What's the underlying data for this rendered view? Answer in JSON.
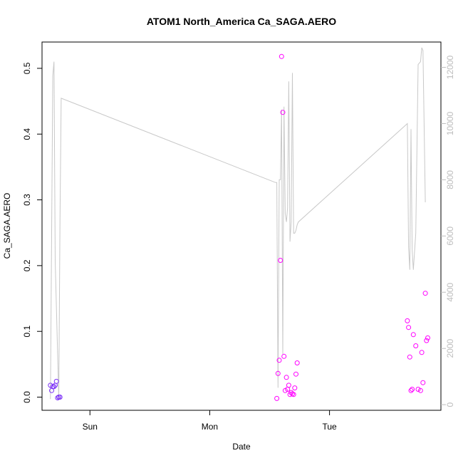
{
  "chart_data": {
    "type": "scatter",
    "title": "ATOM1 North_America Ca_SAGA.AERO",
    "xlabel": "Date",
    "ylabel": "Ca_SAGA.AERO",
    "xlim": [
      -0.4,
      2.93
    ],
    "ylim": [
      -0.02,
      0.54
    ],
    "y2lim": [
      -200,
      12900
    ],
    "grid": false,
    "x_ticks": [
      {
        "value": 0,
        "label": "Sun"
      },
      {
        "value": 1,
        "label": "Mon"
      },
      {
        "value": 2,
        "label": "Tue"
      }
    ],
    "y_ticks": [
      {
        "value": 0.0,
        "label": "0.0"
      },
      {
        "value": 0.1,
        "label": "0.1"
      },
      {
        "value": 0.2,
        "label": "0.2"
      },
      {
        "value": 0.3,
        "label": "0.3"
      },
      {
        "value": 0.4,
        "label": "0.4"
      },
      {
        "value": 0.5,
        "label": "0.5"
      }
    ],
    "y2_ticks": [
      {
        "value": 0,
        "label": "0"
      },
      {
        "value": 2000,
        "label": "2000"
      },
      {
        "value": 4000,
        "label": "4000"
      },
      {
        "value": 6000,
        "label": "6000"
      },
      {
        "value": 8000,
        "label": "8000"
      },
      {
        "value": 10000,
        "label": "10000"
      },
      {
        "value": 12000,
        "label": "12000"
      }
    ],
    "line_series": {
      "axis": "right",
      "color": "#c8c8c8",
      "x": [
        -0.33,
        -0.31,
        -0.3,
        -0.29,
        -0.27,
        -0.26,
        -0.25,
        -0.24,
        1.55,
        1.56,
        1.57,
        1.58,
        1.59,
        1.6,
        1.61,
        1.62,
        1.63,
        1.64,
        1.65,
        1.66,
        1.67,
        1.68,
        1.69,
        1.7,
        1.71,
        1.72,
        1.73,
        1.74,
        2.65,
        2.66,
        2.67,
        2.68,
        2.69,
        2.7,
        2.72,
        2.74,
        2.76,
        2.77,
        2.78,
        2.8
      ],
      "y": [
        200,
        11700,
        12200,
        5100,
        1800,
        200,
        6500,
        10900,
        7900,
        7900,
        600,
        8000,
        8000,
        10500,
        1800,
        10600,
        6800,
        6500,
        7000,
        11500,
        5800,
        6500,
        11800,
        6100,
        6100,
        6200,
        6400,
        6500,
        10000,
        5600,
        4800,
        9800,
        5500,
        4800,
        6100,
        12100,
        12200,
        12700,
        12600,
        7200
      ]
    },
    "scatter_series": {
      "axis": "left",
      "colors": {
        "early": "#7b2ff7",
        "late": "#ff00ff"
      },
      "x": [
        -0.33,
        -0.32,
        -0.31,
        -0.3,
        -0.29,
        -0.28,
        -0.27,
        -0.26,
        -0.25,
        1.56,
        1.57,
        1.58,
        1.59,
        1.6,
        1.61,
        1.62,
        1.63,
        1.64,
        1.65,
        1.66,
        1.67,
        1.68,
        1.69,
        1.7,
        1.71,
        1.72,
        1.73,
        2.65,
        2.66,
        2.67,
        2.68,
        2.69,
        2.7,
        2.72,
        2.74,
        2.76,
        2.77,
        2.78,
        2.8,
        2.81,
        2.82
      ],
      "y": [
        0.018,
        0.01,
        0.016,
        0.016,
        0.018,
        0.024,
        -0.001,
        0.0,
        0.0,
        -0.002,
        0.036,
        0.056,
        0.208,
        0.518,
        0.433,
        0.062,
        0.01,
        0.03,
        0.012,
        0.018,
        0.004,
        0.007,
        0.005,
        0.004,
        0.014,
        0.035,
        0.052,
        0.116,
        0.106,
        0.061,
        0.01,
        0.012,
        0.095,
        0.078,
        0.012,
        0.01,
        0.068,
        0.022,
        0.158,
        0.086,
        0.09
      ]
    }
  }
}
